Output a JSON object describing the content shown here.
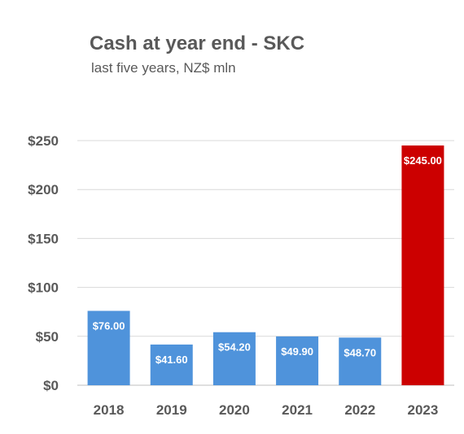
{
  "chart_data": {
    "type": "bar",
    "title": "Cash at year end - SKC",
    "subtitle": "last five years, NZ$ mln",
    "categories": [
      "2018",
      "2019",
      "2020",
      "2021",
      "2022",
      "2023"
    ],
    "values": [
      76.0,
      41.6,
      54.2,
      49.9,
      48.7,
      245.0
    ],
    "data_labels": [
      "$76.00",
      "$41.60",
      "$54.20",
      "$49.90",
      "$48.70",
      "$245.00"
    ],
    "bar_colors": [
      "#4F93DB",
      "#4F93DB",
      "#4F93DB",
      "#4F93DB",
      "#4F93DB",
      "#CC0000"
    ],
    "y_ticks": [
      0,
      50,
      100,
      150,
      200,
      250
    ],
    "y_tick_labels": [
      "$0",
      "$50",
      "$100",
      "$150",
      "$200",
      "$250"
    ],
    "ylim": [
      0,
      250
    ],
    "xlabel": "",
    "ylabel": "",
    "grid": true,
    "legend": "none"
  }
}
